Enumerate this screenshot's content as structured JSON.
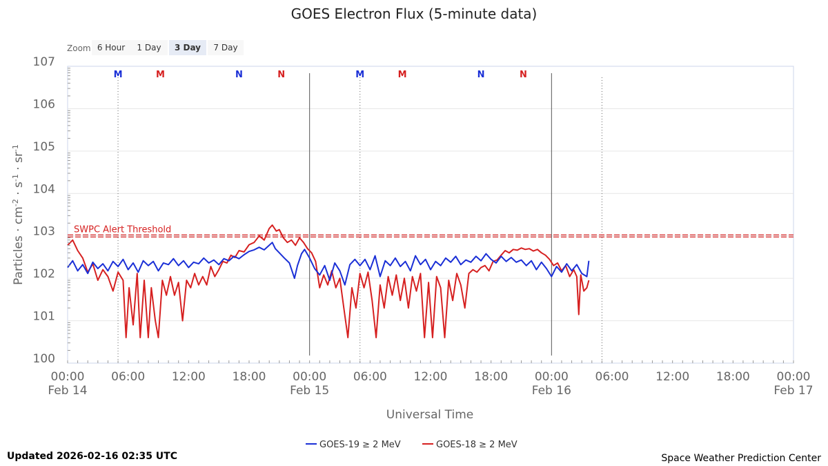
{
  "chart_data": {
    "type": "line",
    "title": "GOES Electron Flux (5-minute data)",
    "xlabel": "Universal Time",
    "ylabel_parts": [
      "Particles · cm",
      "-2",
      " · s",
      "-1",
      " · sr",
      "-1"
    ],
    "y_scale": "log",
    "ylim": [
      1,
      10000000
    ],
    "y_ticks": [
      {
        "base": "10",
        "exp": "0",
        "value": 1
      },
      {
        "base": "10",
        "exp": "1",
        "value": 10
      },
      {
        "base": "10",
        "exp": "2",
        "value": 100
      },
      {
        "base": "10",
        "exp": "3",
        "value": 1000
      },
      {
        "base": "10",
        "exp": "4",
        "value": 10000
      },
      {
        "base": "10",
        "exp": "5",
        "value": 100000
      },
      {
        "base": "10",
        "exp": "6",
        "value": 1000000
      },
      {
        "base": "10",
        "exp": "7",
        "value": 10000000
      }
    ],
    "x_range_hours": [
      0,
      72
    ],
    "x_ticks": [
      {
        "hour": 0,
        "time": "00:00",
        "date": "Feb 14"
      },
      {
        "hour": 6,
        "time": "06:00",
        "date": ""
      },
      {
        "hour": 12,
        "time": "12:00",
        "date": ""
      },
      {
        "hour": 18,
        "time": "18:00",
        "date": ""
      },
      {
        "hour": 24,
        "time": "00:00",
        "date": "Feb 15"
      },
      {
        "hour": 30,
        "time": "06:00",
        "date": ""
      },
      {
        "hour": 36,
        "time": "12:00",
        "date": ""
      },
      {
        "hour": 42,
        "time": "18:00",
        "date": ""
      },
      {
        "hour": 48,
        "time": "00:00",
        "date": "Feb 16"
      },
      {
        "hour": 54,
        "time": "06:00",
        "date": ""
      },
      {
        "hour": 60,
        "time": "12:00",
        "date": ""
      },
      {
        "hour": 66,
        "time": "18:00",
        "date": ""
      },
      {
        "hour": 72,
        "time": "00:00",
        "date": "Feb 17"
      }
    ],
    "day_lines_hours": [
      24,
      48
    ],
    "dotted_lines_hours": [
      5,
      29,
      53
    ],
    "markers": [
      {
        "label": "M",
        "hour": 5.0,
        "color": "#1a2fd6"
      },
      {
        "label": "M",
        "hour": 9.2,
        "color": "#d62020"
      },
      {
        "label": "N",
        "hour": 17.0,
        "color": "#1a2fd6"
      },
      {
        "label": "N",
        "hour": 21.2,
        "color": "#d62020"
      },
      {
        "label": "M",
        "hour": 29.0,
        "color": "#1a2fd6"
      },
      {
        "label": "M",
        "hour": 33.2,
        "color": "#d62020"
      },
      {
        "label": "N",
        "hour": 41.0,
        "color": "#1a2fd6"
      },
      {
        "label": "N",
        "hour": 45.2,
        "color": "#d62020"
      }
    ],
    "threshold": {
      "label": "SWPC Alert Threshold",
      "value": 1000,
      "color": "#d62020"
    },
    "series": [
      {
        "name": "GOES-19 ≥ 2 MeV",
        "color": "#1a2fd6",
        "points": [
          [
            0.0,
            180
          ],
          [
            0.5,
            260
          ],
          [
            1.0,
            150
          ],
          [
            1.5,
            210
          ],
          [
            2.0,
            130
          ],
          [
            2.5,
            240
          ],
          [
            3.0,
            170
          ],
          [
            3.5,
            220
          ],
          [
            4.0,
            150
          ],
          [
            4.5,
            250
          ],
          [
            5.0,
            190
          ],
          [
            5.5,
            280
          ],
          [
            6.0,
            160
          ],
          [
            6.5,
            230
          ],
          [
            7.0,
            140
          ],
          [
            7.5,
            260
          ],
          [
            8.0,
            200
          ],
          [
            8.5,
            250
          ],
          [
            9.0,
            150
          ],
          [
            9.5,
            230
          ],
          [
            10.0,
            210
          ],
          [
            10.5,
            290
          ],
          [
            11.0,
            200
          ],
          [
            11.5,
            260
          ],
          [
            12.0,
            180
          ],
          [
            12.5,
            240
          ],
          [
            13.0,
            220
          ],
          [
            13.5,
            300
          ],
          [
            14.0,
            230
          ],
          [
            14.5,
            270
          ],
          [
            15.0,
            210
          ],
          [
            15.5,
            290
          ],
          [
            16.0,
            260
          ],
          [
            16.5,
            330
          ],
          [
            17.0,
            290
          ],
          [
            17.5,
            360
          ],
          [
            18.0,
            430
          ],
          [
            18.5,
            470
          ],
          [
            19.0,
            540
          ],
          [
            19.5,
            470
          ],
          [
            20.0,
            600
          ],
          [
            20.3,
            700
          ],
          [
            20.6,
            500
          ],
          [
            21.0,
            400
          ],
          [
            21.5,
            300
          ],
          [
            22.0,
            230
          ],
          [
            22.5,
            100
          ],
          [
            22.8,
            200
          ],
          [
            23.2,
            380
          ],
          [
            23.5,
            480
          ],
          [
            24.0,
            300
          ],
          [
            24.5,
            170
          ],
          [
            25.0,
            120
          ],
          [
            25.5,
            200
          ],
          [
            26.0,
            90
          ],
          [
            26.5,
            230
          ],
          [
            27.0,
            150
          ],
          [
            27.5,
            70
          ],
          [
            28.0,
            210
          ],
          [
            28.5,
            280
          ],
          [
            29.0,
            200
          ],
          [
            29.5,
            280
          ],
          [
            30.0,
            160
          ],
          [
            30.5,
            340
          ],
          [
            31.0,
            110
          ],
          [
            31.5,
            260
          ],
          [
            32.0,
            200
          ],
          [
            32.5,
            300
          ],
          [
            33.0,
            190
          ],
          [
            33.5,
            250
          ],
          [
            34.0,
            150
          ],
          [
            34.5,
            340
          ],
          [
            35.0,
            210
          ],
          [
            35.5,
            280
          ],
          [
            36.0,
            160
          ],
          [
            36.5,
            250
          ],
          [
            37.0,
            200
          ],
          [
            37.5,
            300
          ],
          [
            38.0,
            240
          ],
          [
            38.5,
            330
          ],
          [
            39.0,
            210
          ],
          [
            39.5,
            270
          ],
          [
            40.0,
            240
          ],
          [
            40.5,
            330
          ],
          [
            41.0,
            260
          ],
          [
            41.5,
            380
          ],
          [
            42.0,
            280
          ],
          [
            42.5,
            230
          ],
          [
            43.0,
            330
          ],
          [
            43.5,
            250
          ],
          [
            44.0,
            310
          ],
          [
            44.5,
            240
          ],
          [
            45.0,
            270
          ],
          [
            45.5,
            200
          ],
          [
            46.0,
            260
          ],
          [
            46.5,
            160
          ],
          [
            47.0,
            240
          ],
          [
            47.5,
            170
          ],
          [
            48.0,
            110
          ],
          [
            48.5,
            190
          ],
          [
            49.0,
            140
          ],
          [
            49.5,
            220
          ],
          [
            50.0,
            150
          ],
          [
            50.5,
            210
          ],
          [
            51.0,
            130
          ],
          [
            51.5,
            110
          ],
          [
            51.7,
            260
          ]
        ]
      },
      {
        "name": "GOES-18 ≥ 2 MeV",
        "color": "#d62020",
        "points": [
          [
            0.0,
            600
          ],
          [
            0.5,
            800
          ],
          [
            1.0,
            450
          ],
          [
            1.5,
            300
          ],
          [
            2.0,
            140
          ],
          [
            2.5,
            220
          ],
          [
            3.0,
            90
          ],
          [
            3.5,
            160
          ],
          [
            4.0,
            110
          ],
          [
            4.5,
            50
          ],
          [
            5.0,
            140
          ],
          [
            5.5,
            90
          ],
          [
            5.8,
            4
          ],
          [
            6.1,
            60
          ],
          [
            6.5,
            8
          ],
          [
            6.9,
            130
          ],
          [
            7.2,
            4
          ],
          [
            7.6,
            90
          ],
          [
            8.0,
            4
          ],
          [
            8.3,
            60
          ],
          [
            8.7,
            10
          ],
          [
            9.0,
            4
          ],
          [
            9.4,
            90
          ],
          [
            9.8,
            40
          ],
          [
            10.2,
            110
          ],
          [
            10.6,
            40
          ],
          [
            11.0,
            80
          ],
          [
            11.4,
            10
          ],
          [
            11.8,
            90
          ],
          [
            12.2,
            60
          ],
          [
            12.6,
            130
          ],
          [
            13.0,
            70
          ],
          [
            13.4,
            110
          ],
          [
            13.8,
            70
          ],
          [
            14.2,
            190
          ],
          [
            14.6,
            110
          ],
          [
            15.0,
            160
          ],
          [
            15.4,
            250
          ],
          [
            15.8,
            230
          ],
          [
            16.2,
            350
          ],
          [
            16.6,
            310
          ],
          [
            17.0,
            450
          ],
          [
            17.5,
            420
          ],
          [
            18.0,
            620
          ],
          [
            18.5,
            700
          ],
          [
            19.0,
            1000
          ],
          [
            19.5,
            800
          ],
          [
            20.0,
            1500
          ],
          [
            20.3,
            1800
          ],
          [
            20.7,
            1300
          ],
          [
            21.0,
            1400
          ],
          [
            21.4,
            900
          ],
          [
            21.8,
            700
          ],
          [
            22.2,
            800
          ],
          [
            22.6,
            600
          ],
          [
            23.0,
            900
          ],
          [
            23.4,
            700
          ],
          [
            23.8,
            500
          ],
          [
            24.2,
            400
          ],
          [
            24.6,
            250
          ],
          [
            25.0,
            60
          ],
          [
            25.4,
            120
          ],
          [
            25.8,
            70
          ],
          [
            26.2,
            150
          ],
          [
            26.6,
            60
          ],
          [
            27.0,
            100
          ],
          [
            27.4,
            20
          ],
          [
            27.8,
            4
          ],
          [
            28.2,
            60
          ],
          [
            28.6,
            20
          ],
          [
            29.0,
            130
          ],
          [
            29.4,
            60
          ],
          [
            29.8,
            140
          ],
          [
            30.2,
            30
          ],
          [
            30.6,
            4
          ],
          [
            31.0,
            70
          ],
          [
            31.4,
            20
          ],
          [
            31.8,
            110
          ],
          [
            32.2,
            40
          ],
          [
            32.6,
            120
          ],
          [
            33.0,
            30
          ],
          [
            33.4,
            100
          ],
          [
            33.8,
            20
          ],
          [
            34.2,
            110
          ],
          [
            34.6,
            50
          ],
          [
            35.0,
            130
          ],
          [
            35.4,
            4
          ],
          [
            35.8,
            80
          ],
          [
            36.2,
            4
          ],
          [
            36.6,
            110
          ],
          [
            37.0,
            60
          ],
          [
            37.4,
            4
          ],
          [
            37.8,
            90
          ],
          [
            38.2,
            30
          ],
          [
            38.6,
            130
          ],
          [
            39.0,
            70
          ],
          [
            39.4,
            20
          ],
          [
            39.8,
            130
          ],
          [
            40.2,
            160
          ],
          [
            40.6,
            140
          ],
          [
            41.0,
            180
          ],
          [
            41.4,
            200
          ],
          [
            41.8,
            150
          ],
          [
            42.2,
            250
          ],
          [
            42.6,
            270
          ],
          [
            43.0,
            350
          ],
          [
            43.4,
            450
          ],
          [
            43.8,
            400
          ],
          [
            44.2,
            480
          ],
          [
            44.6,
            460
          ],
          [
            45.0,
            520
          ],
          [
            45.4,
            480
          ],
          [
            45.8,
            500
          ],
          [
            46.2,
            440
          ],
          [
            46.6,
            480
          ],
          [
            47.0,
            400
          ],
          [
            47.4,
            350
          ],
          [
            47.8,
            280
          ],
          [
            48.2,
            200
          ],
          [
            48.6,
            230
          ],
          [
            49.0,
            150
          ],
          [
            49.4,
            200
          ],
          [
            49.8,
            110
          ],
          [
            50.2,
            160
          ],
          [
            50.5,
            110
          ],
          [
            50.7,
            14
          ],
          [
            50.9,
            120
          ],
          [
            51.2,
            50
          ],
          [
            51.5,
            60
          ],
          [
            51.7,
            90
          ]
        ]
      }
    ],
    "legend_placement": "bottom-center"
  },
  "zoom": {
    "label": "Zoom",
    "buttons": [
      "6 Hour",
      "1 Day",
      "3 Day",
      "7 Day"
    ],
    "selected": "3 Day"
  },
  "footer": {
    "updated": "Updated 2026-02-16 02:35 UTC",
    "credit": "Space Weather Prediction Center"
  },
  "colors": {
    "goes19": "#1a2fd6",
    "goes18": "#d62020",
    "grid": "#e6e6e6",
    "axis": "#ccd6eb"
  }
}
